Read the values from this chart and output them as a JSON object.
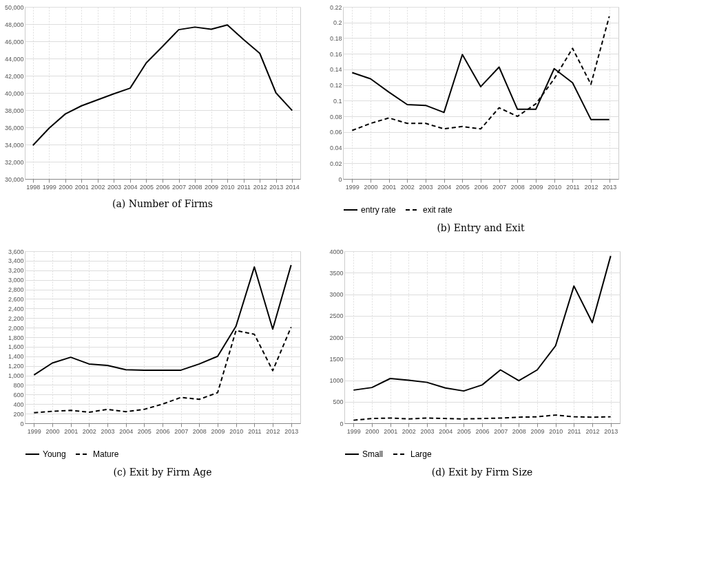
{
  "chart_data": [
    {
      "type": "line",
      "title": "(a) Number of Firms",
      "categories": [
        "1998",
        "1999",
        "2000",
        "2001",
        "2002",
        "2003",
        "2004",
        "2005",
        "2006",
        "2007",
        "2008",
        "2009",
        "2010",
        "2011",
        "2012",
        "2013",
        "2014"
      ],
      "series": [
        {
          "color": "#000000",
          "values": [
            33900,
            35900,
            37550,
            38500,
            39200,
            39900,
            40550,
            43500,
            45400,
            47350,
            47650,
            47400,
            47900,
            46200,
            44600,
            40000,
            37950
          ]
        }
      ],
      "ylim": [
        30000,
        50000
      ],
      "yticks": [
        {
          "value": 30000,
          "label": "30,000"
        },
        {
          "value": 32000,
          "label": "32,000"
        },
        {
          "value": 34000,
          "label": "34,000"
        },
        {
          "value": 36000,
          "label": "36,000"
        },
        {
          "value": 38000,
          "label": "38,000"
        },
        {
          "value": 40000,
          "label": "40,000"
        },
        {
          "value": 42000,
          "label": "42,000"
        },
        {
          "value": 44000,
          "label": "44,000"
        },
        {
          "value": 46000,
          "label": "46,000"
        },
        {
          "value": 48000,
          "label": "48,000"
        },
        {
          "value": 50000,
          "label": "50,000"
        }
      ],
      "grid": true,
      "line_style": "solid"
    },
    {
      "type": "line",
      "title": "(b) Entry and Exit",
      "categories": [
        "1999",
        "2000",
        "2001",
        "2002",
        "2003",
        "2004",
        "2005",
        "2006",
        "2007",
        "2008",
        "2009",
        "2010",
        "2011",
        "2012",
        "2013"
      ],
      "series": [
        {
          "name": "entry rate",
          "color": "#000000",
          "line_style": "solid",
          "values": [
            0.136,
            0.128,
            0.111,
            0.095,
            0.094,
            0.085,
            0.159,
            0.118,
            0.143,
            0.089,
            0.089,
            0.141,
            0.123,
            0.076,
            0.076
          ]
        },
        {
          "name": "exit rate",
          "color": "#000000",
          "line_style": "dashed",
          "values": [
            0.062,
            0.071,
            0.078,
            0.071,
            0.071,
            0.064,
            0.067,
            0.064,
            0.091,
            0.08,
            0.096,
            0.128,
            0.167,
            0.121,
            0.208
          ]
        }
      ],
      "ylim": [
        0,
        0.22
      ],
      "yticks": [
        {
          "value": 0,
          "label": "0"
        },
        0.02,
        0.04,
        0.06,
        0.08,
        {
          "value": 0.1,
          "label": "0.1"
        },
        0.12,
        0.14,
        0.16,
        0.18,
        {
          "value": 0.2,
          "label": "0.2"
        },
        0.22
      ],
      "grid": true,
      "legend": "bottom"
    },
    {
      "type": "line",
      "title": "(c) Exit by Firm Age",
      "categories": [
        "1999",
        "2000",
        "2001",
        "2002",
        "2003",
        "2004",
        "2005",
        "2006",
        "2007",
        "2008",
        "2009",
        "2010",
        "2011",
        "2012",
        "2013"
      ],
      "series": [
        {
          "name": "Young",
          "color": "#000000",
          "line_style": "solid",
          "values": [
            1010,
            1260,
            1380,
            1240,
            1210,
            1120,
            1110,
            1110,
            1110,
            1240,
            1400,
            2030,
            3270,
            1970,
            3310
          ]
        },
        {
          "name": "Mature",
          "color": "#000000",
          "line_style": "dashed",
          "values": [
            220,
            250,
            270,
            230,
            290,
            240,
            290,
            400,
            540,
            500,
            640,
            1940,
            1860,
            1100,
            2010
          ]
        }
      ],
      "ylim": [
        0,
        3600
      ],
      "yticks": [
        0,
        200,
        400,
        600,
        800,
        {
          "value": 1000,
          "label": "1,000"
        },
        {
          "value": 1200,
          "label": "1,200"
        },
        {
          "value": 1400,
          "label": "1,400"
        },
        {
          "value": 1600,
          "label": "1,600"
        },
        {
          "value": 1800,
          "label": "1,800"
        },
        {
          "value": 2000,
          "label": "2,000"
        },
        {
          "value": 2200,
          "label": "2,200"
        },
        {
          "value": 2400,
          "label": "2,400"
        },
        {
          "value": 2600,
          "label": "2,600"
        },
        {
          "value": 2800,
          "label": "2,800"
        },
        {
          "value": 3000,
          "label": "3,000"
        },
        {
          "value": 3200,
          "label": "3,200"
        },
        {
          "value": 3400,
          "label": "3,400"
        },
        {
          "value": 3600,
          "label": "3,600"
        }
      ],
      "grid": true,
      "legend": "bottom"
    },
    {
      "type": "line",
      "title": "(d) Exit by Firm Size",
      "categories": [
        "1999",
        "2000",
        "2001",
        "2002",
        "2003",
        "2004",
        "2005",
        "2006",
        "2007",
        "2008",
        "2009",
        "2010",
        "2011",
        "2012",
        "2013"
      ],
      "series": [
        {
          "name": "Small",
          "color": "#000000",
          "line_style": "solid",
          "values": [
            770,
            830,
            1040,
            1000,
            950,
            820,
            750,
            890,
            1240,
            990,
            1240,
            1800,
            3190,
            2340,
            3890
          ]
        },
        {
          "name": "Large",
          "color": "#000000",
          "line_style": "dashed",
          "values": [
            70,
            110,
            120,
            100,
            120,
            110,
            100,
            110,
            120,
            140,
            150,
            190,
            150,
            140,
            150
          ]
        }
      ],
      "ylim": [
        0,
        4000
      ],
      "yticks": [
        0,
        500,
        {
          "value": 1000,
          "label": "1000"
        },
        {
          "value": 1500,
          "label": "1500"
        },
        {
          "value": 2000,
          "label": "2000"
        },
        {
          "value": 2500,
          "label": "2500"
        },
        {
          "value": 3000,
          "label": "3000"
        },
        {
          "value": 3500,
          "label": "3500"
        },
        {
          "value": 4000,
          "label": "4000"
        }
      ],
      "grid": true,
      "legend": "bottom"
    }
  ]
}
